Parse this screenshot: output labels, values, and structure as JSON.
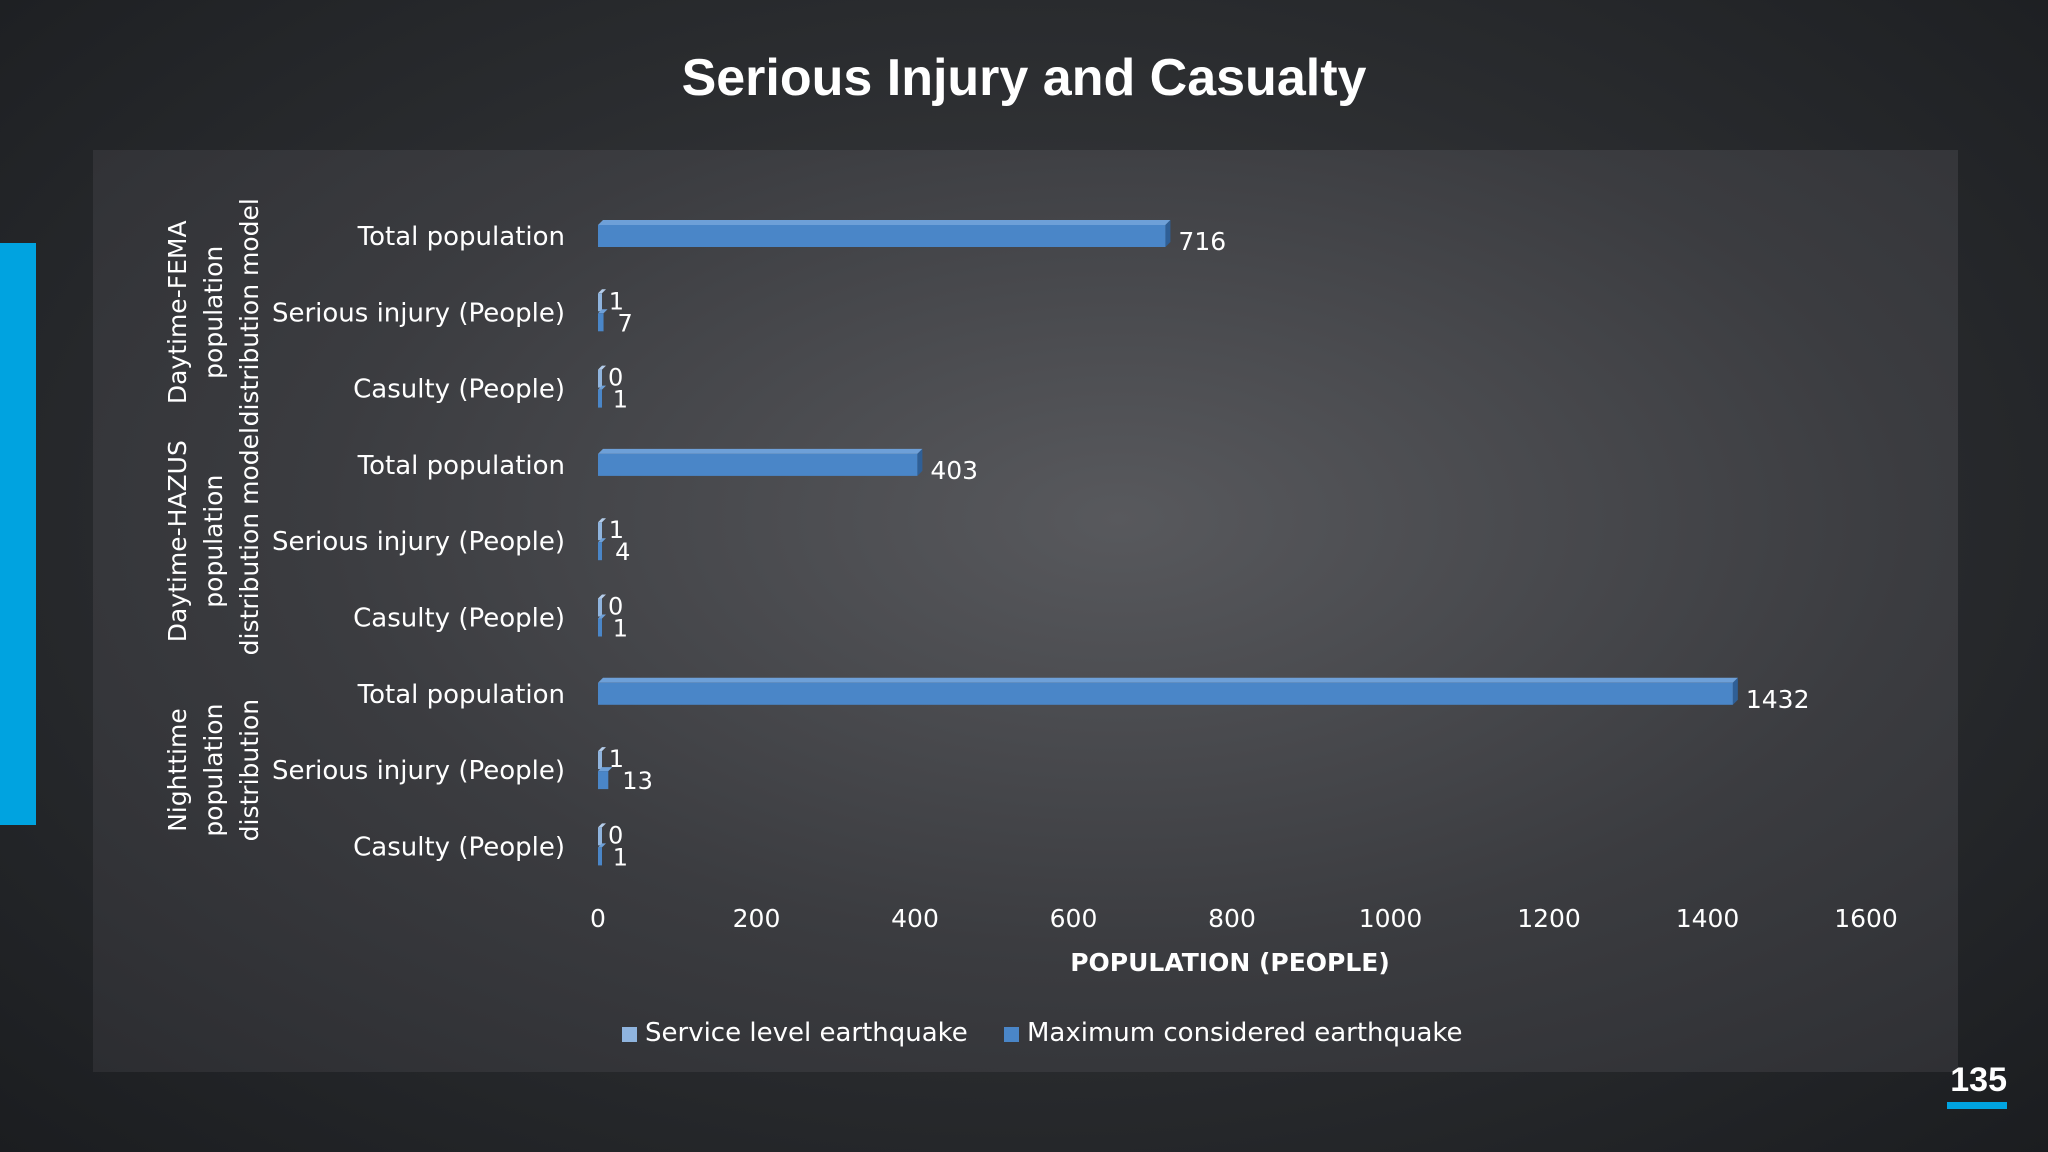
{
  "slide": {
    "title": "Serious Injury and Casualty",
    "page_number": "135",
    "accent_color": "#00a3e0"
  },
  "chart_data": {
    "type": "bar",
    "orientation": "horizontal",
    "xlabel": "POPULATION (PEOPLE)",
    "xlim": [
      0,
      1600
    ],
    "x_ticks": [
      "0",
      "200",
      "400",
      "600",
      "800",
      "1000",
      "1200",
      "1400",
      "1600"
    ],
    "legend_position": "bottom",
    "groups": [
      {
        "label": "Daytime-FEMA population distribution model",
        "categories": [
          "Total population",
          "Serious injury (People)",
          "Casulty (People)"
        ]
      },
      {
        "label": "Daytime-HAZUS population distribution model",
        "categories": [
          "Total population",
          "Serious injury (People)",
          "Casulty (People)"
        ]
      },
      {
        "label": "Nighttime population distribution",
        "categories": [
          "Total population",
          "Serious injury (People)",
          "Casulty (People)"
        ]
      }
    ],
    "series": [
      {
        "name": "Service level earthquake",
        "color": "#8fb4de",
        "values": [
          null,
          1,
          0,
          null,
          1,
          0,
          null,
          1,
          0
        ]
      },
      {
        "name": "Maximum considered earthquake",
        "color": "#4a86c8",
        "values": [
          716,
          7,
          1,
          403,
          4,
          1,
          1432,
          13,
          1
        ]
      }
    ]
  }
}
